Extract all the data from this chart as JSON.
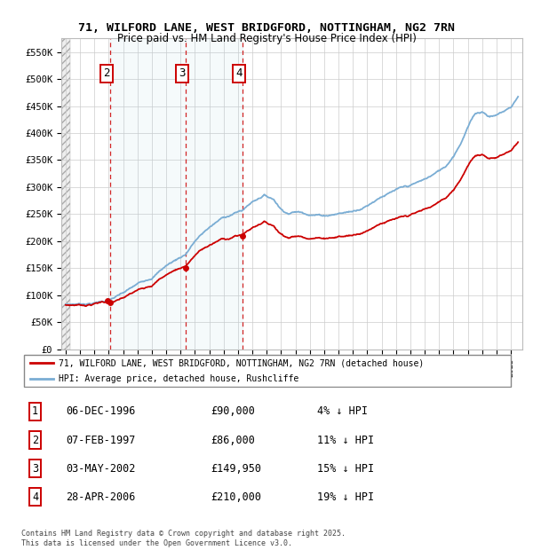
{
  "title_line1": "71, WILFORD LANE, WEST BRIDGFORD, NOTTINGHAM, NG2 7RN",
  "title_line2": "Price paid vs. HM Land Registry's House Price Index (HPI)",
  "ylabel_ticks": [
    "£0",
    "£50K",
    "£100K",
    "£150K",
    "£200K",
    "£250K",
    "£300K",
    "£350K",
    "£400K",
    "£450K",
    "£500K",
    "£550K"
  ],
  "ytick_values": [
    0,
    50000,
    100000,
    150000,
    200000,
    250000,
    300000,
    350000,
    400000,
    450000,
    500000,
    550000
  ],
  "ylim": [
    0,
    575000
  ],
  "xlim_start": 1993.7,
  "xlim_end": 2025.8,
  "sale_color": "#cc0000",
  "hpi_color": "#7aadd4",
  "purchases": [
    {
      "label": "1",
      "date_num": 1996.92,
      "price": 90000
    },
    {
      "label": "2",
      "date_num": 1997.1,
      "price": 86000
    },
    {
      "label": "3",
      "date_num": 2002.34,
      "price": 149950
    },
    {
      "label": "4",
      "date_num": 2006.32,
      "price": 210000
    }
  ],
  "legend_line1": "71, WILFORD LANE, WEST BRIDGFORD, NOTTINGHAM, NG2 7RN (detached house)",
  "legend_line2": "HPI: Average price, detached house, Rushcliffe",
  "table_rows": [
    {
      "num": "1",
      "date": "06-DEC-1996",
      "price": "£90,000",
      "hpi": "4% ↓ HPI"
    },
    {
      "num": "2",
      "date": "07-FEB-1997",
      "price": "£86,000",
      "hpi": "11% ↓ HPI"
    },
    {
      "num": "3",
      "date": "03-MAY-2002",
      "price": "£149,950",
      "hpi": "15% ↓ HPI"
    },
    {
      "num": "4",
      "date": "28-APR-2006",
      "price": "£210,000",
      "hpi": "19% ↓ HPI"
    }
  ],
  "footnote": "Contains HM Land Registry data © Crown copyright and database right 2025.\nThis data is licensed under the Open Government Licence v3.0."
}
